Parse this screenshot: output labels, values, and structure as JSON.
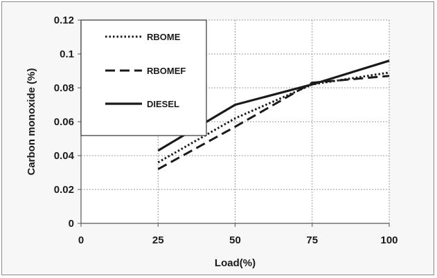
{
  "chart_data": {
    "type": "line",
    "title": "",
    "xlabel": "Load(%)",
    "ylabel": "Carbon monoxide (%)",
    "xlim": [
      0,
      100
    ],
    "ylim": [
      0,
      0.12
    ],
    "x_ticks": [
      0,
      25,
      50,
      75,
      100
    ],
    "x_tick_labels": [
      "0",
      "25",
      "50",
      "75",
      "100"
    ],
    "y_ticks": [
      0,
      0.02,
      0.04,
      0.06,
      0.08,
      0.1,
      0.12
    ],
    "y_tick_labels": [
      "0",
      "0.02",
      "0.04",
      "0.06",
      "0.08",
      "0.1",
      "0.12"
    ],
    "grid": true,
    "legend_position": "top-left",
    "series": [
      {
        "name": "RBOME",
        "style": "dotted",
        "color": "#1a1a1a",
        "x": [
          25,
          50,
          75,
          100
        ],
        "y": [
          0.036,
          0.062,
          0.082,
          0.089
        ]
      },
      {
        "name": "RBOMEF",
        "style": "dashed",
        "color": "#1a1a1a",
        "x": [
          25,
          50,
          75,
          100
        ],
        "y": [
          0.032,
          0.057,
          0.083,
          0.087
        ]
      },
      {
        "name": "DIESEL",
        "style": "solid",
        "color": "#1a1a1a",
        "x": [
          25,
          50,
          75,
          100
        ],
        "y": [
          0.043,
          0.07,
          0.082,
          0.096
        ]
      }
    ]
  }
}
